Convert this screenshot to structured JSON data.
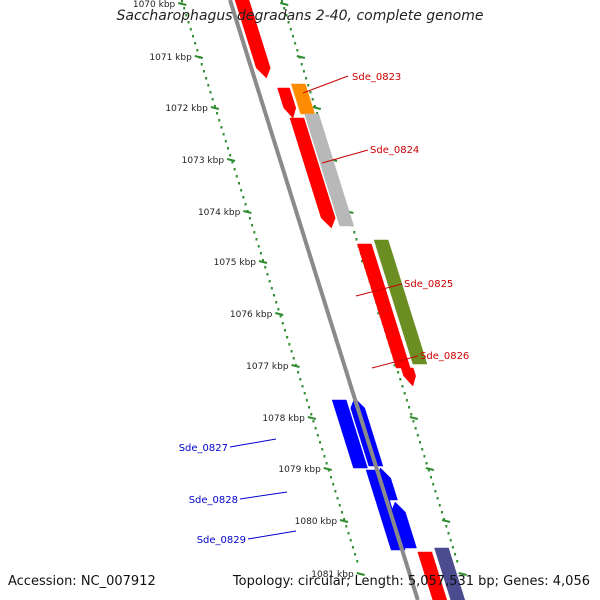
{
  "title": "Saccharophagus degradans 2-40, complete genome",
  "footer": {
    "accession": "Accession: NC_007912",
    "summary": "Topology: circular; Length: 5,057,531 bp; Genes: 4,056"
  },
  "colors": {
    "background": "#ffffff",
    "backbone": "#8a8a8a",
    "ruler_dots": "#2e8b2e",
    "forward_label": "#cc0000",
    "reverse_label": "#0000cc"
  },
  "ruler_ticks": [
    {
      "label": "1070 kbp"
    },
    {
      "label": "1071 kbp"
    },
    {
      "label": "1072 kbp"
    },
    {
      "label": "1073 kbp"
    },
    {
      "label": "1074 kbp"
    },
    {
      "label": "1075 kbp"
    },
    {
      "label": "1076 kbp"
    },
    {
      "label": "1077 kbp"
    },
    {
      "label": "1078 kbp"
    },
    {
      "label": "1079 kbp"
    },
    {
      "label": "1080 kbp"
    },
    {
      "label": "1081 kbp"
    }
  ],
  "features": [
    {
      "kind": "cds",
      "strand": "forward",
      "color": "#ff0000"
    },
    {
      "kind": "cds",
      "strand": "forward",
      "color": "#ff0000"
    },
    {
      "kind": "cds",
      "strand": "forward",
      "color": "#ff0000"
    },
    {
      "kind": "cds",
      "strand": "forward",
      "color": "#ff0000"
    },
    {
      "kind": "cds",
      "strand": "forward",
      "color": "#ff0000"
    },
    {
      "kind": "gene",
      "strand": "forward",
      "color": "#ff8c00"
    },
    {
      "kind": "gene",
      "strand": "forward",
      "color": "#b8b8b8"
    },
    {
      "kind": "gene",
      "strand": "forward",
      "color": "#6b8e23"
    },
    {
      "kind": "cds",
      "strand": "reverse",
      "color": "#0000ff"
    },
    {
      "kind": "cds",
      "strand": "reverse",
      "color": "#0000ff"
    },
    {
      "kind": "cds",
      "strand": "reverse",
      "color": "#0000ff"
    },
    {
      "kind": "cds",
      "strand": "reverse",
      "color": "#0000ff"
    },
    {
      "kind": "cds",
      "strand": "reverse",
      "color": "#0000ff"
    },
    {
      "kind": "cds",
      "strand": "reverse",
      "color": "#0000ff"
    },
    {
      "kind": "cds",
      "strand": "forward",
      "color": "#ff0000"
    },
    {
      "kind": "gene",
      "strand": "forward",
      "color": "#4b4b8f"
    }
  ],
  "gene_labels": [
    {
      "text": "Sde_0823",
      "strand": "forward"
    },
    {
      "text": "Sde_0824",
      "strand": "forward"
    },
    {
      "text": "Sde_0825",
      "strand": "forward"
    },
    {
      "text": "Sde_0826",
      "strand": "forward"
    },
    {
      "text": "Sde_0827",
      "strand": "reverse"
    },
    {
      "text": "Sde_0828",
      "strand": "reverse"
    },
    {
      "text": "Sde_0829",
      "strand": "reverse"
    }
  ]
}
